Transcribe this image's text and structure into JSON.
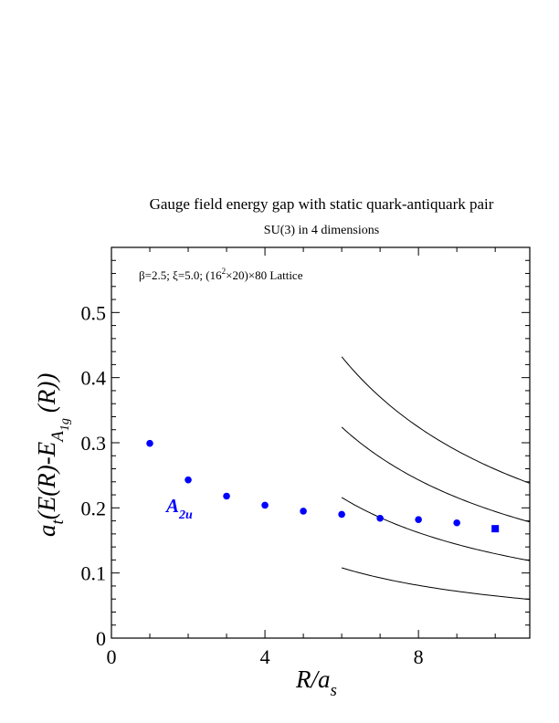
{
  "chart_data": {
    "type": "scatter",
    "title": "Gauge field energy gap with static quark-antiquark pair",
    "subtitle": "SU(3) in 4 dimensions",
    "annotation": {
      "beta_xi": "β=2.5;  ξ=5.0;  (16",
      "sup": "2",
      "lattice_rest": "×20)×80 Lattice"
    },
    "series_label": {
      "main": "A",
      "sub": "2u"
    },
    "xlabel": {
      "main": "R/a",
      "sub": "s"
    },
    "ylabel": {
      "prefix": "a",
      "prefix_sub": "t",
      "middle": "(E(R)-E",
      "e_sub": "A",
      "e_subsub": "1g",
      "suffix": "(R))"
    },
    "xlim": [
      0,
      10.9
    ],
    "ylim": [
      0,
      0.6
    ],
    "x_ticks": [
      "0",
      "4",
      "8"
    ],
    "x_tick_values": [
      0,
      4,
      8
    ],
    "y_ticks": [
      "0",
      "0.1",
      "0.2",
      "0.3",
      "0.4",
      "0.5"
    ],
    "y_tick_values": [
      0,
      0.1,
      0.2,
      0.3,
      0.4,
      0.5
    ],
    "x_minor_step": 1,
    "y_minor_step": 0.02,
    "grid": false,
    "series": [
      {
        "points": [
          {
            "x": 1,
            "y": 0.299
          },
          {
            "x": 2,
            "y": 0.243
          },
          {
            "x": 3,
            "y": 0.218
          },
          {
            "x": 4,
            "y": 0.204
          },
          {
            "x": 5,
            "y": 0.195
          },
          {
            "x": 6,
            "y": 0.19
          },
          {
            "x": 7,
            "y": 0.184
          },
          {
            "x": 8,
            "y": 0.182
          },
          {
            "x": 9,
            "y": 0.177
          },
          {
            "x": 10,
            "y": 0.168,
            "marker": "square"
          }
        ],
        "color": "#0000ff"
      }
    ],
    "curves": [
      {
        "n": 1,
        "x_range": [
          6.0,
          10.9
        ],
        "color": "#000000"
      },
      {
        "n": 2,
        "x_range": [
          6.0,
          10.9
        ],
        "color": "#000000"
      },
      {
        "n": 3,
        "x_range": [
          6.0,
          10.9
        ],
        "color": "#000000"
      },
      {
        "n": 4,
        "x_range": [
          6.0,
          10.9
        ],
        "color": "#000000"
      }
    ],
    "curve_scale": 0.648
  }
}
